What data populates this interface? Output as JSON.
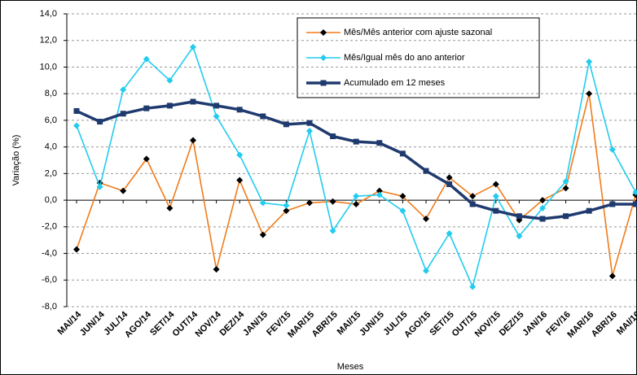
{
  "chart_data": {
    "type": "line",
    "x_label": "Meses",
    "y_label": "Variação (%)",
    "categories": [
      "MAI/14",
      "JUN/14",
      "JUL/14",
      "AGO/14",
      "SET/14",
      "OUT/14",
      "NOV/14",
      "DEZ/14",
      "JAN/15",
      "FEV/15",
      "MAR/15",
      "ABR/15",
      "MAI/15",
      "JUN/15",
      "JUL/15",
      "AGO/15",
      "SET/15",
      "OUT/15",
      "NOV/15",
      "DEZ/15",
      "JAN/16",
      "FEV/16",
      "MAR/16",
      "ABR/16",
      "MAI/16"
    ],
    "series": [
      {
        "name": "Mês/Mês anterior com ajuste sazonal",
        "color": "#f07c1c",
        "marker": "diamond",
        "marker_color": "#000000",
        "values": [
          -3.7,
          1.3,
          0.7,
          3.1,
          -0.6,
          4.5,
          -5.2,
          1.5,
          -2.6,
          -0.8,
          -0.2,
          -0.1,
          -0.3,
          0.7,
          0.3,
          -1.4,
          1.7,
          0.3,
          1.2,
          -1.5,
          0.0,
          0.9,
          8.0,
          -5.7,
          0.4
        ]
      },
      {
        "name": "Mês/Igual mês do ano anterior",
        "color": "#22ccee",
        "marker": "diamond",
        "marker_color": "#22ccee",
        "values": [
          5.6,
          1.0,
          8.3,
          10.6,
          9.0,
          11.5,
          6.3,
          3.4,
          -0.2,
          -0.4,
          5.2,
          -2.3,
          0.3,
          0.4,
          -0.8,
          -5.3,
          -2.5,
          -6.5,
          0.3,
          -2.7,
          -0.6,
          1.4,
          10.4,
          3.8,
          0.6
        ]
      },
      {
        "name": "Acumulado em 12 meses",
        "color": "#1f3a6e",
        "marker": "square",
        "marker_color": "#1f3a6e",
        "values": [
          6.7,
          5.9,
          6.5,
          6.9,
          7.1,
          7.4,
          7.1,
          6.8,
          6.3,
          5.7,
          5.8,
          4.8,
          4.4,
          4.3,
          3.5,
          2.2,
          1.2,
          -0.3,
          -0.8,
          -1.2,
          -1.4,
          -1.2,
          -0.8,
          -0.3,
          -0.3
        ]
      }
    ],
    "ylim": [
      -8,
      14
    ],
    "yticks": [
      {
        "value": -8,
        "label": "-8,0"
      },
      {
        "value": -6,
        "label": "-6,0"
      },
      {
        "value": -4,
        "label": "-4,0"
      },
      {
        "value": -2,
        "label": "-2,0"
      },
      {
        "value": 0,
        "label": "0,0"
      },
      {
        "value": 2,
        "label": "2,0"
      },
      {
        "value": 4,
        "label": "4,0"
      },
      {
        "value": 6,
        "label": "6,0"
      },
      {
        "value": 8,
        "label": "8,0"
      },
      {
        "value": 10,
        "label": "10,0"
      },
      {
        "value": 12,
        "label": "12,0"
      },
      {
        "value": 14,
        "label": "14,0"
      }
    ],
    "grid": true
  }
}
